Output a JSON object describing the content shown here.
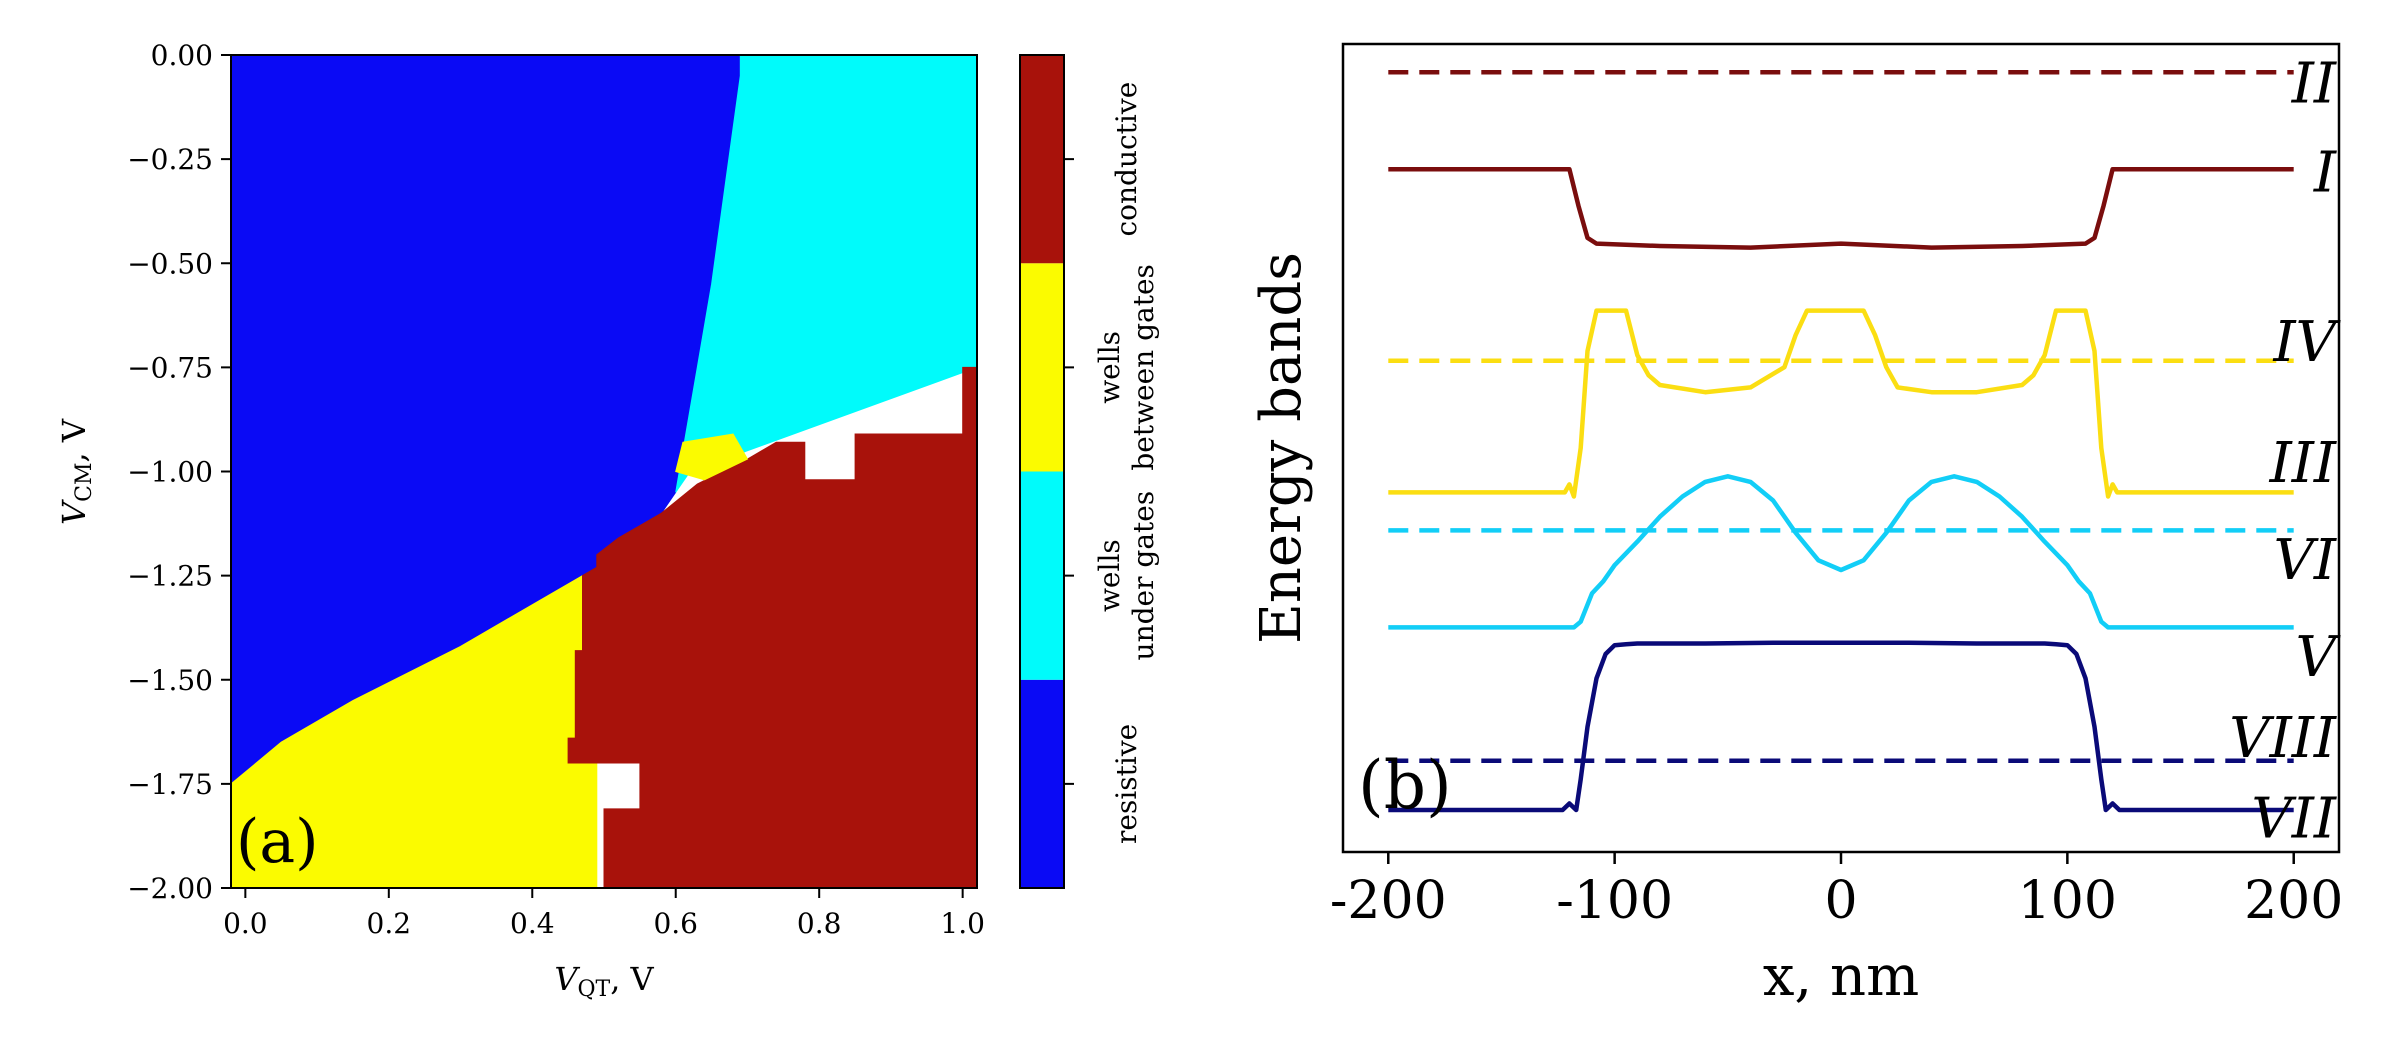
{
  "chart_data": [
    {
      "type": "heatmap",
      "panel_label": "(a)",
      "xlabel": {
        "main": "V",
        "sub": "QT",
        "unit": ", V"
      },
      "ylabel": {
        "main": "V",
        "sub": "CM",
        "unit": ", V"
      },
      "xlim": [
        -0.02,
        1.02
      ],
      "ylim": [
        -2.0,
        0.0
      ],
      "x_ticks": [
        "0.0",
        "0.2",
        "0.4",
        "0.6",
        "0.8",
        "1.0"
      ],
      "x_tick_values": [
        0.0,
        0.2,
        0.4,
        0.6,
        0.8,
        1.0
      ],
      "y_ticks": [
        "0.00",
        "−0.25",
        "−0.50",
        "−0.75",
        "−1.00",
        "−1.25",
        "−1.50",
        "−1.75",
        "−2.00"
      ],
      "y_tick_values": [
        0.0,
        -0.25,
        -0.5,
        -0.75,
        -1.0,
        -1.25,
        -1.5,
        -1.75,
        -2.0
      ],
      "colorbar": [
        {
          "label_lines": [
            "resistive"
          ],
          "color": "#0a0af5"
        },
        {
          "label_lines": [
            "wells",
            "under gates"
          ],
          "color": "#00fbfb"
        },
        {
          "label_lines": [
            "wells",
            "between gates"
          ],
          "color": "#fbfb00"
        },
        {
          "label_lines": [
            "conductive"
          ],
          "color": "#a8120b"
        }
      ],
      "regions": [
        {
          "name": "resistive",
          "color": "#0a0af5",
          "polygon": [
            [
              -0.02,
              0.0
            ],
            [
              0.69,
              0.0
            ],
            [
              0.69,
              -0.05
            ],
            [
              0.67,
              -0.3
            ],
            [
              0.65,
              -0.55
            ],
            [
              0.63,
              -0.75
            ],
            [
              0.61,
              -0.95
            ],
            [
              0.6,
              -1.05
            ],
            [
              0.58,
              -1.1
            ],
            [
              0.52,
              -1.2
            ],
            [
              0.45,
              -1.3
            ],
            [
              0.3,
              -1.42
            ],
            [
              0.15,
              -1.55
            ],
            [
              0.05,
              -1.65
            ],
            [
              -0.02,
              -1.75
            ]
          ]
        },
        {
          "name": "wells between gates",
          "color": "#fbfb00",
          "polygon": [
            [
              -0.02,
              -1.75
            ],
            [
              0.05,
              -1.65
            ],
            [
              0.15,
              -1.55
            ],
            [
              0.3,
              -1.42
            ],
            [
              0.47,
              -1.25
            ],
            [
              0.49,
              -1.25
            ],
            [
              0.49,
              -2.0
            ],
            [
              -0.02,
              -2.0
            ]
          ]
        },
        {
          "name": "wells under gates",
          "color": "#00fbfb",
          "polygon": [
            [
              0.69,
              0.0
            ],
            [
              1.02,
              0.0
            ],
            [
              1.02,
              -0.75
            ],
            [
              0.62,
              -1.0
            ],
            [
              0.6,
              -1.05
            ],
            [
              0.61,
              -0.95
            ],
            [
              0.63,
              -0.75
            ],
            [
              0.65,
              -0.55
            ],
            [
              0.67,
              -0.3
            ],
            [
              0.69,
              -0.05
            ]
          ]
        },
        {
          "name": "conductive",
          "color": "#a8120b",
          "polygon": [
            [
              1.02,
              -0.75
            ],
            [
              1.0,
              -0.75
            ],
            [
              1.0,
              -0.91
            ],
            [
              0.85,
              -0.91
            ],
            [
              0.85,
              -1.02
            ],
            [
              0.78,
              -1.02
            ],
            [
              0.78,
              -0.93
            ],
            [
              0.74,
              -0.93
            ],
            [
              0.7,
              -0.97
            ],
            [
              0.63,
              -1.03
            ],
            [
              0.58,
              -1.1
            ],
            [
              0.52,
              -1.16
            ],
            [
              0.49,
              -1.2
            ],
            [
              0.49,
              -1.23
            ],
            [
              0.47,
              -1.25
            ],
            [
              0.47,
              -1.43
            ],
            [
              0.46,
              -1.43
            ],
            [
              0.46,
              -1.64
            ],
            [
              0.45,
              -1.64
            ],
            [
              0.45,
              -1.7
            ],
            [
              0.55,
              -1.7
            ],
            [
              0.55,
              -1.81
            ],
            [
              0.5,
              -1.81
            ],
            [
              0.5,
              -2.0
            ],
            [
              1.02,
              -2.0
            ]
          ]
        },
        {
          "name": "wells between gates (islands)",
          "color": "#fbfb00",
          "polygon": [
            [
              0.61,
              -0.93
            ],
            [
              0.68,
              -0.91
            ],
            [
              0.7,
              -0.97
            ],
            [
              0.64,
              -1.02
            ],
            [
              0.6,
              -1.0
            ]
          ]
        }
      ]
    },
    {
      "type": "line",
      "panel_label": "(b)",
      "xlabel": "x, nm",
      "ylabel": "Energy bands",
      "xlim": [
        -220,
        220
      ],
      "ylim": [
        0,
        100
      ],
      "x_ticks": [
        "-200",
        "-100",
        "0",
        "100",
        "200"
      ],
      "x_tick_values": [
        -200,
        -100,
        0,
        100,
        200
      ],
      "series": [
        {
          "name": "II",
          "color": "#7a0d0d",
          "style": "dashed",
          "x": [
            -200,
            200
          ],
          "y": [
            96.5,
            96.5
          ]
        },
        {
          "name": "I",
          "color": "#7a0d0d",
          "style": "solid",
          "x": [
            -200,
            -120,
            -116,
            -112,
            -108,
            -80,
            -40,
            0,
            40,
            80,
            108,
            112,
            116,
            120,
            200
          ],
          "y": [
            84.5,
            84.5,
            80,
            76,
            75.3,
            75,
            74.8,
            75.3,
            74.8,
            75,
            75.3,
            76,
            80,
            84.5,
            84.5
          ]
        },
        {
          "name": "IV",
          "color": "#fbde12",
          "style": "dashed",
          "x": [
            -200,
            200
          ],
          "y": [
            60.8,
            60.8
          ]
        },
        {
          "name": "III",
          "color": "#fbde12",
          "style": "solid",
          "x": [
            -200,
            -122,
            -120,
            -118,
            -115,
            -112,
            -108,
            -100,
            -95,
            -90,
            -85,
            -80,
            -60,
            -40,
            -25,
            -20,
            -15,
            -10,
            -5,
            5,
            10,
            15,
            20,
            25,
            40,
            60,
            80,
            85,
            90,
            95,
            100,
            108,
            112,
            115,
            118,
            120,
            122,
            200
          ],
          "y": [
            44.5,
            44.5,
            45.5,
            44,
            50,
            62,
            67,
            67,
            67,
            61.5,
            59,
            57.8,
            56.9,
            57.5,
            60,
            64,
            67,
            67,
            67,
            67,
            67,
            64,
            60,
            57.5,
            56.9,
            56.9,
            57.8,
            59,
            61.5,
            67,
            67,
            67,
            62,
            50,
            44,
            45.5,
            44.5,
            44.5
          ]
        },
        {
          "name": "VI",
          "color": "#12cef7",
          "style": "dashed",
          "x": [
            -200,
            200
          ],
          "y": [
            39.8,
            39.8
          ]
        },
        {
          "name": "V",
          "color": "#12cef7",
          "style": "solid",
          "x": [
            -200,
            -118,
            -115,
            -110,
            -105,
            -100,
            -90,
            -80,
            -70,
            -60,
            -50,
            -40,
            -30,
            -20,
            -10,
            0,
            10,
            20,
            30,
            40,
            50,
            60,
            70,
            80,
            90,
            100,
            105,
            110,
            115,
            118,
            200
          ],
          "y": [
            27.8,
            27.8,
            28.5,
            32,
            33.5,
            35.5,
            38.4,
            41.5,
            44,
            45.8,
            46.5,
            45.8,
            43.5,
            39.5,
            36.1,
            34.9,
            36.1,
            39.5,
            43.5,
            45.8,
            46.5,
            45.8,
            44,
            41.5,
            38.4,
            35.5,
            33.5,
            32,
            28.5,
            27.8,
            27.8
          ]
        },
        {
          "name": "VIII",
          "color": "#0a0a78",
          "style": "dashed",
          "x": [
            -200,
            200
          ],
          "y": [
            11.3,
            11.3
          ]
        },
        {
          "name": "VII",
          "color": "#0a0a78",
          "style": "solid",
          "x": [
            -200,
            -123,
            -120,
            -117,
            -115,
            -112,
            -108,
            -104,
            -100,
            -95,
            -90,
            -60,
            -30,
            0,
            30,
            60,
            90,
            95,
            100,
            104,
            108,
            112,
            115,
            117,
            120,
            123,
            200
          ],
          "y": [
            5.2,
            5.2,
            6.0,
            5.2,
            9.0,
            15.5,
            21.5,
            24.5,
            25.6,
            25.7,
            25.8,
            25.8,
            25.9,
            25.9,
            25.9,
            25.8,
            25.8,
            25.7,
            25.6,
            24.5,
            21.5,
            15.5,
            9.0,
            5.2,
            6.0,
            5.2,
            5.2
          ]
        }
      ],
      "series_label_y": {
        "II": 95,
        "I": 84,
        "IV": 63,
        "III": 48,
        "VI": 36,
        "V": 24,
        "VIII": 14,
        "VII": 4
      }
    }
  ]
}
